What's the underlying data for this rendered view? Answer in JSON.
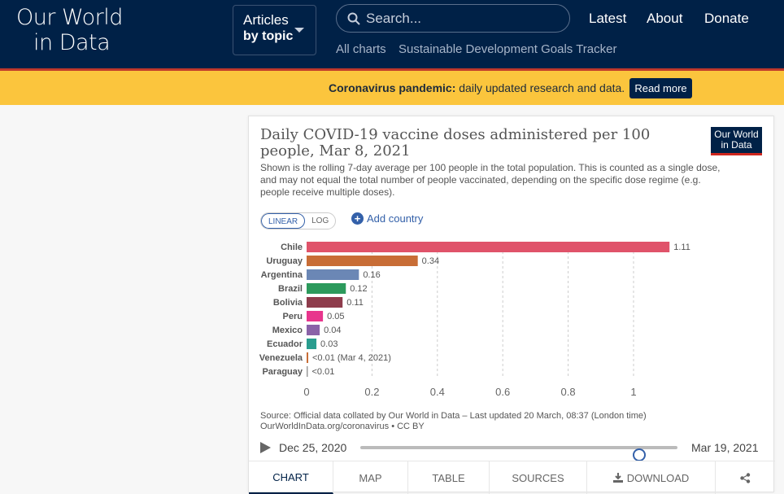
{
  "header": {
    "logo_line1": "Our World",
    "logo_line2": "in Data",
    "articles_line1": "Articles",
    "articles_line2": "by topic",
    "search_placeholder": "Search...",
    "nav": [
      "Latest",
      "About",
      "Donate"
    ],
    "sublinks": [
      "All charts",
      "Sustainable Development Goals Tracker"
    ]
  },
  "banner": {
    "bold": "Coronavirus pandemic:",
    "text": " daily updated research and data.",
    "button": "Read more"
  },
  "chart_card": {
    "logo_line1": "Our World",
    "logo_line2": "in Data",
    "scale_linear": "LINEAR",
    "scale_log": "LOG",
    "add_country": "Add country",
    "source_line1": "Source: Official data collated by Our World in Data – Last updated 20 March, 08:37 (London time)",
    "source_line2": "OurWorldInData.org/coronavirus • CC BY",
    "timeline_start": "Dec 25, 2020",
    "timeline_end": "Mar 19, 2021",
    "timeline_position": 0.88,
    "tabs": [
      "CHART",
      "MAP",
      "TABLE",
      "SOURCES",
      "DOWNLOAD"
    ]
  },
  "chart_data": {
    "type": "bar",
    "orientation": "horizontal",
    "title": "Daily COVID-19 vaccine doses administered per 100 people, Mar 8, 2021",
    "subtitle": "Shown is the rolling 7-day average per 100 people in the total population. This is counted as a single dose, and may not equal the total number of people vaccinated, depending on the specific dose regime (e.g. people receive multiple doses).",
    "categories": [
      "Chile",
      "Uruguay",
      "Argentina",
      "Brazil",
      "Bolivia",
      "Peru",
      "Mexico",
      "Ecuador",
      "Venezuela",
      "Paraguay"
    ],
    "values": [
      1.11,
      0.34,
      0.16,
      0.12,
      0.11,
      0.05,
      0.04,
      0.03,
      0.005,
      0.002
    ],
    "labels": [
      "1.11",
      "0.34",
      "0.16",
      "0.12",
      "0.11",
      "0.05",
      "0.04",
      "0.03",
      "<0.01 (Mar 4, 2021)",
      "<0.01"
    ],
    "colors": [
      "#e0536a",
      "#c86d36",
      "#6b87b5",
      "#2c9a5c",
      "#8e3c4c",
      "#e8358d",
      "#8a62a8",
      "#2a9d8f",
      "#c86d36",
      "#999999"
    ],
    "xticks": [
      0,
      0.2,
      0.4,
      0.6,
      0.8,
      1
    ],
    "xtick_labels": [
      "0",
      "0.2",
      "0.4",
      "0.6",
      "0.8",
      "1"
    ],
    "xlim": [
      0,
      1.11
    ],
    "grid": true
  }
}
